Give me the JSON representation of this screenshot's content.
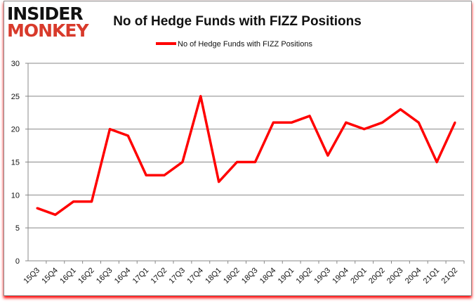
{
  "logo": {
    "line1": "INSIDER",
    "line2": "MONKEY"
  },
  "chart_data": {
    "type": "line",
    "title": "No of Hedge Funds with FIZZ Positions",
    "legend": {
      "label": "No of Hedge Funds with FIZZ Positions",
      "position": "top"
    },
    "categories": [
      "15Q3",
      "15Q4",
      "16Q1",
      "16Q2",
      "16Q3",
      "16Q4",
      "17Q1",
      "17Q2",
      "17Q3",
      "17Q4",
      "18Q1",
      "18Q2",
      "18Q3",
      "18Q4",
      "19Q1",
      "19Q2",
      "19Q3",
      "19Q4",
      "20Q1",
      "20Q2",
      "20Q3",
      "20Q4",
      "21Q1",
      "21Q2"
    ],
    "series": [
      {
        "name": "No of Hedge Funds with FIZZ Positions",
        "color": "#ff0000",
        "values": [
          8,
          7,
          9,
          9,
          20,
          19,
          13,
          13,
          15,
          25,
          12,
          15,
          15,
          21,
          21,
          22,
          16,
          21,
          20,
          21,
          23,
          21,
          15,
          21
        ]
      }
    ],
    "ylim": [
      0,
      30
    ],
    "yticks": [
      "0",
      "5",
      "10",
      "15",
      "20",
      "25",
      "30"
    ],
    "grid": true,
    "xlabel": "",
    "ylabel": ""
  }
}
